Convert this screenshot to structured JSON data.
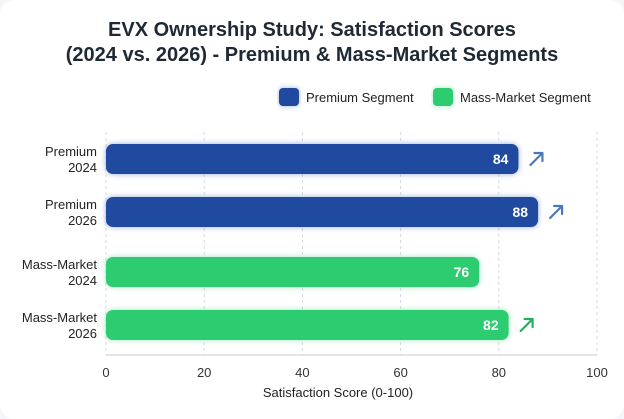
{
  "title_line1": "EVX Ownership Study: Satisfaction Scores",
  "title_line2": "(2024 vs. 2026) - Premium & Mass-Market Segments",
  "colors": {
    "premium": "#1f4aa0",
    "mass_market": "#2ecc71",
    "premium_arrow": "#4a79b8",
    "mass_market_arrow": "#27ae60"
  },
  "chart_data": {
    "type": "bar",
    "orientation": "horizontal",
    "categories": [
      [
        "Premium",
        "2024"
      ],
      [
        "Premium",
        "2026"
      ],
      [
        "Mass-Market",
        "2024"
      ],
      [
        "Mass-Market",
        "2026"
      ]
    ],
    "values": [
      84,
      88,
      76,
      82
    ],
    "segments": [
      "premium",
      "premium",
      "mass_market",
      "mass_market"
    ],
    "trend_arrow": [
      true,
      true,
      false,
      true
    ],
    "legend": [
      {
        "label": "Premium Segment",
        "segment": "premium"
      },
      {
        "label": "Mass-Market Segment",
        "segment": "mass_market"
      }
    ],
    "legend_position": "top-right",
    "xlabel": "Satisfaction Score (0-100)",
    "xlim": [
      0,
      100
    ],
    "xticks": [
      0,
      20,
      40,
      60,
      80,
      100
    ],
    "grid": true
  }
}
